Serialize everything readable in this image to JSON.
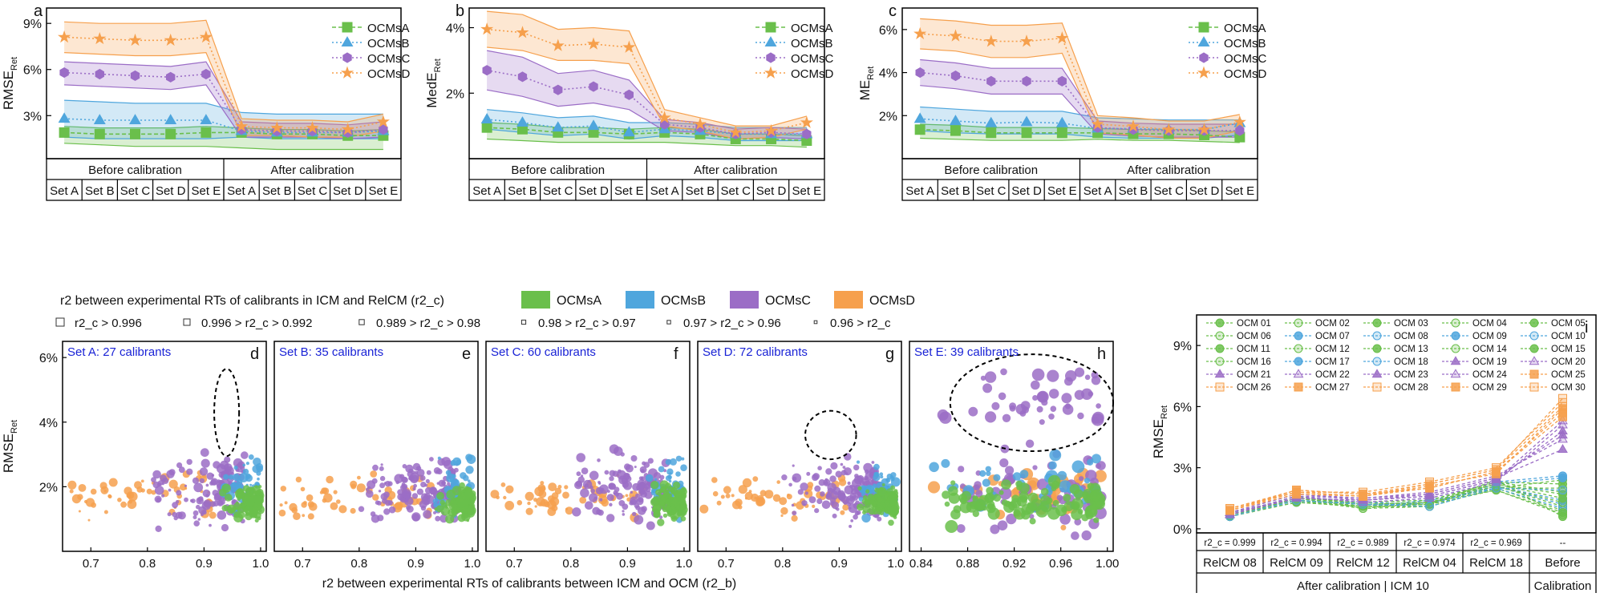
{
  "colors": {
    "OCMsA": "#6abf4b",
    "OCMsB": "#4fa6dd",
    "OCMsC": "#9b6dc6",
    "OCMsD": "#f6a04d"
  },
  "sets": [
    "Set A",
    "Set B",
    "Set C",
    "Set D",
    "Set E"
  ],
  "before_label": "Before calibration",
  "after_label": "After calibration",
  "chart_data": [
    {
      "id": "a",
      "type": "line",
      "panel_letter": "a",
      "ylabel_main": "RMSE",
      "ylabel_sub": "Ret",
      "ylim": [
        0.2,
        10.0
      ],
      "yticks": [
        3,
        6,
        9
      ],
      "yticklabels": [
        "3%",
        "6%",
        "9%"
      ],
      "series": [
        {
          "name": "OCMsA",
          "values": [
            1.9,
            1.8,
            1.8,
            1.8,
            1.9,
            1.9,
            1.8,
            1.8,
            1.7,
            1.7
          ],
          "upper": [
            2.3,
            2.2,
            2.2,
            2.2,
            2.3,
            2.2,
            2.1,
            2.1,
            2.0,
            2.1
          ],
          "lower": [
            1.2,
            1.1,
            1.0,
            1.0,
            1.0,
            0.9,
            0.8,
            0.8,
            0.8,
            0.8
          ]
        },
        {
          "name": "OCMsB",
          "values": [
            2.8,
            2.7,
            2.7,
            2.7,
            2.7,
            2.0,
            1.9,
            1.9,
            1.9,
            2.0
          ],
          "upper": [
            4.0,
            3.9,
            3.8,
            3.8,
            3.8,
            3.2,
            3.1,
            3.1,
            3.1,
            3.1
          ],
          "lower": [
            1.6,
            1.5,
            1.5,
            1.5,
            1.5,
            1.6,
            1.5,
            1.5,
            1.5,
            1.5
          ]
        },
        {
          "name": "OCMsC",
          "values": [
            5.8,
            5.7,
            5.6,
            5.5,
            5.7,
            2.1,
            2.0,
            2.0,
            1.9,
            2.1
          ],
          "upper": [
            6.5,
            6.4,
            6.3,
            6.2,
            6.5,
            2.6,
            2.5,
            2.5,
            2.4,
            2.6
          ],
          "lower": [
            5.0,
            4.9,
            4.8,
            4.7,
            5.0,
            1.6,
            1.6,
            1.6,
            1.5,
            1.6
          ]
        },
        {
          "name": "OCMsD",
          "values": [
            8.1,
            8.0,
            7.9,
            7.9,
            8.1,
            2.3,
            2.2,
            2.2,
            2.1,
            2.6
          ],
          "upper": [
            9.1,
            9.0,
            9.0,
            9.0,
            9.2,
            2.8,
            2.7,
            2.7,
            2.6,
            3.1
          ],
          "lower": [
            7.1,
            7.0,
            6.9,
            6.9,
            7.1,
            1.7,
            1.7,
            1.6,
            1.6,
            2.0
          ]
        }
      ]
    },
    {
      "id": "b",
      "type": "line",
      "panel_letter": "b",
      "ylabel_main": "MedE",
      "ylabel_sub": "Ret",
      "ylim": [
        0.0,
        4.6
      ],
      "yticks": [
        2,
        4
      ],
      "yticklabels": [
        "2%",
        "4%"
      ],
      "series": [
        {
          "name": "OCMsA",
          "values": [
            0.95,
            0.9,
            0.8,
            0.8,
            0.75,
            0.8,
            0.75,
            0.6,
            0.6,
            0.55
          ],
          "upper": [
            1.1,
            1.05,
            0.95,
            0.95,
            0.9,
            0.95,
            0.9,
            0.75,
            0.75,
            0.7
          ],
          "lower": [
            0.6,
            0.55,
            0.5,
            0.5,
            0.5,
            0.5,
            0.45,
            0.4,
            0.4,
            0.35
          ]
        },
        {
          "name": "OCMsB",
          "values": [
            1.2,
            1.1,
            0.95,
            1.0,
            0.8,
            0.9,
            0.85,
            0.75,
            0.75,
            0.75
          ],
          "upper": [
            1.5,
            1.4,
            1.25,
            1.3,
            1.1,
            1.1,
            1.05,
            0.95,
            0.95,
            0.95
          ],
          "lower": [
            0.9,
            0.8,
            0.7,
            0.75,
            0.6,
            0.7,
            0.65,
            0.55,
            0.55,
            0.55
          ]
        },
        {
          "name": "OCMsC",
          "values": [
            2.7,
            2.5,
            2.1,
            2.2,
            1.95,
            1.05,
            0.95,
            0.75,
            0.8,
            0.75
          ],
          "upper": [
            3.3,
            3.1,
            2.6,
            2.7,
            2.4,
            1.2,
            1.1,
            0.9,
            0.95,
            0.9
          ],
          "lower": [
            2.1,
            1.9,
            1.6,
            1.7,
            1.5,
            0.85,
            0.8,
            0.6,
            0.65,
            0.6
          ]
        },
        {
          "name": "OCMsD",
          "values": [
            3.95,
            3.85,
            3.45,
            3.5,
            3.4,
            1.25,
            1.05,
            0.8,
            0.85,
            1.1
          ],
          "upper": [
            4.5,
            4.4,
            3.95,
            4.0,
            3.9,
            1.5,
            1.25,
            1.0,
            1.0,
            1.3
          ],
          "lower": [
            3.4,
            3.3,
            3.0,
            3.0,
            2.9,
            1.0,
            0.85,
            0.6,
            0.65,
            0.9
          ]
        }
      ]
    },
    {
      "id": "c",
      "type": "line",
      "panel_letter": "c",
      "ylabel_main": "ME",
      "ylabel_sub": "Ret",
      "ylim": [
        0.0,
        7.0
      ],
      "yticks": [
        2,
        4,
        6
      ],
      "yticklabels": [
        "2%",
        "4%",
        "6%"
      ],
      "series": [
        {
          "name": "OCMsA",
          "values": [
            1.35,
            1.3,
            1.2,
            1.2,
            1.2,
            1.2,
            1.15,
            1.15,
            1.1,
            1.0
          ],
          "upper": [
            1.6,
            1.55,
            1.45,
            1.45,
            1.45,
            1.4,
            1.35,
            1.35,
            1.3,
            1.25
          ],
          "lower": [
            0.95,
            0.9,
            0.85,
            0.85,
            0.85,
            0.9,
            0.85,
            0.85,
            0.8,
            0.75
          ]
        },
        {
          "name": "OCMsB",
          "values": [
            1.85,
            1.75,
            1.65,
            1.7,
            1.65,
            1.4,
            1.4,
            1.35,
            1.35,
            1.65
          ],
          "upper": [
            2.4,
            2.3,
            2.2,
            2.2,
            2.2,
            1.9,
            1.85,
            1.8,
            1.8,
            1.8
          ],
          "lower": [
            1.3,
            1.2,
            1.15,
            1.15,
            1.15,
            1.0,
            0.95,
            0.95,
            0.95,
            1.1
          ]
        },
        {
          "name": "OCMsC",
          "values": [
            4.0,
            3.85,
            3.6,
            3.6,
            3.6,
            1.45,
            1.35,
            1.3,
            1.3,
            1.3
          ],
          "upper": [
            4.6,
            4.45,
            4.2,
            4.2,
            4.2,
            1.75,
            1.65,
            1.6,
            1.6,
            1.6
          ],
          "lower": [
            3.4,
            3.25,
            3.0,
            3.0,
            3.0,
            1.15,
            1.05,
            1.0,
            1.0,
            1.0
          ]
        },
        {
          "name": "OCMsD",
          "values": [
            5.8,
            5.7,
            5.45,
            5.45,
            5.6,
            1.6,
            1.5,
            1.35,
            1.35,
            1.7
          ],
          "upper": [
            6.5,
            6.4,
            6.2,
            6.2,
            6.3,
            2.0,
            1.9,
            1.75,
            1.75,
            2.05
          ],
          "lower": [
            5.1,
            5.0,
            4.7,
            4.7,
            4.9,
            1.2,
            1.1,
            0.95,
            0.95,
            1.3
          ]
        }
      ]
    },
    {
      "id": "scatter",
      "type": "scatter",
      "xlabel": "r2 between experimental RTs of calibrants between ICM and OCM (r2_b)",
      "ylabel_main": "RMSE",
      "ylabel_sub": "Ret",
      "ylim": [
        0.0,
        6.5
      ],
      "yticks": [
        2,
        4,
        6
      ],
      "yticklabels": [
        "2%",
        "4%",
        "6%"
      ],
      "panels": [
        {
          "letter": "d",
          "label": "Set A: 27 calibrants",
          "xlim": [
            0.65,
            1.01
          ],
          "xticks": [
            0.7,
            0.8,
            0.9,
            1.0
          ],
          "xticklabels": [
            "0.7",
            "0.8",
            "0.9",
            "1.0"
          ],
          "ellipse": {
            "cx": 0.94,
            "cy": 4.3,
            "rx": 0.022,
            "ry": 1.35
          }
        },
        {
          "letter": "e",
          "label": "Set B: 35 calibrants",
          "xlim": [
            0.65,
            1.01
          ],
          "xticks": [
            0.7,
            0.8,
            0.9,
            1.0
          ],
          "xticklabels": [
            "0.7",
            "0.8",
            "0.9",
            "1.0"
          ]
        },
        {
          "letter": "f",
          "label": "Set C: 60 calibrants",
          "xlim": [
            0.65,
            1.01
          ],
          "xticks": [
            0.7,
            0.8,
            0.9,
            1.0
          ],
          "xticklabels": [
            "0.7",
            "0.8",
            "0.9",
            "1.0"
          ]
        },
        {
          "letter": "g",
          "label": "Set D: 72 calibrants",
          "xlim": [
            0.65,
            1.01
          ],
          "xticks": [
            0.7,
            0.8,
            0.9,
            1.0
          ],
          "xticklabels": [
            "0.7",
            "0.8",
            "0.9",
            "1.0"
          ],
          "ellipse": {
            "cx": 0.885,
            "cy": 3.6,
            "rx": 0.045,
            "ry": 0.75
          }
        },
        {
          "letter": "h",
          "label": "Set E: 39 calibrants",
          "xlim": [
            0.83,
            1.005
          ],
          "xticks": [
            0.84,
            0.88,
            0.92,
            0.96,
            1.0
          ],
          "xticklabels": [
            "0.84",
            "0.88",
            "0.92",
            "0.96",
            "1.00"
          ],
          "ellipse": {
            "cx": 0.935,
            "cy": 4.6,
            "rx": 0.07,
            "ry": 1.5
          }
        }
      ]
    },
    {
      "id": "i",
      "type": "line",
      "panel_letter": "i",
      "ylabel_main": "RMSE",
      "ylabel_sub": "Ret",
      "ylim": [
        -0.2,
        10.5
      ],
      "yticks": [
        0,
        3,
        6,
        9
      ],
      "yticklabels": [
        "0%",
        "3%",
        "6%",
        "9%"
      ],
      "categories": [
        "RelCM 08",
        "RelCM 09",
        "RelCM 12",
        "RelCM 04",
        "RelCM 18",
        "Before"
      ],
      "r2c_labels": [
        "r2_c = 0.999",
        "r2_c = 0.994",
        "r2_c = 0.989",
        "r2_c = 0.974",
        "r2_c = 0.969",
        "--"
      ],
      "group_labels": [
        "After calibration  |  ICM 10",
        "Calibration"
      ],
      "series": [
        {
          "name": "OCM 01",
          "values": [
            0.7,
            1.5,
            1.2,
            1.3,
            2.0,
            2.4
          ]
        },
        {
          "name": "OCM 02",
          "values": [
            0.6,
            1.4,
            1.1,
            1.2,
            2.1,
            1.1
          ]
        },
        {
          "name": "OCM 03",
          "values": [
            0.8,
            1.5,
            1.3,
            1.4,
            2.2,
            1.7
          ]
        },
        {
          "name": "OCM 04",
          "values": [
            0.7,
            1.3,
            1.1,
            1.1,
            2.0,
            0.9
          ]
        },
        {
          "name": "OCM 05",
          "values": [
            0.6,
            1.4,
            1.2,
            1.2,
            2.3,
            2.2
          ]
        },
        {
          "name": "OCM 06",
          "values": [
            0.7,
            1.6,
            1.0,
            1.3,
            1.9,
            0.7
          ]
        },
        {
          "name": "OCM 07",
          "values": [
            0.8,
            1.4,
            1.2,
            1.2,
            2.1,
            1.4
          ]
        },
        {
          "name": "OCM 08",
          "values": [
            0.6,
            1.5,
            1.1,
            1.4,
            2.0,
            1.0
          ]
        },
        {
          "name": "OCM 09",
          "values": [
            0.7,
            1.3,
            1.3,
            1.2,
            2.2,
            2.5
          ]
        },
        {
          "name": "OCM 10",
          "values": [
            0.8,
            1.4,
            1.2,
            1.3,
            2.1,
            1.2
          ]
        },
        {
          "name": "OCM 11",
          "values": [
            0.6,
            1.5,
            1.1,
            1.2,
            2.4,
            0.6
          ]
        },
        {
          "name": "OCM 12",
          "values": [
            0.7,
            1.4,
            1.0,
            1.1,
            2.0,
            2.0
          ]
        },
        {
          "name": "OCM 13",
          "values": [
            0.7,
            1.6,
            1.2,
            1.3,
            2.2,
            1.5
          ]
        },
        {
          "name": "OCM 14",
          "values": [
            0.8,
            1.5,
            1.3,
            1.4,
            2.3,
            1.8
          ]
        },
        {
          "name": "OCM 15",
          "values": [
            0.6,
            1.3,
            1.1,
            1.2,
            1.9,
            0.8
          ]
        },
        {
          "name": "OCM 16",
          "values": [
            0.7,
            1.4,
            1.2,
            1.3,
            2.1,
            1.3
          ]
        },
        {
          "name": "OCM 17",
          "values": [
            0.7,
            1.6,
            1.3,
            1.5,
            2.3,
            2.6
          ]
        },
        {
          "name": "OCM 18",
          "values": [
            0.6,
            1.4,
            1.2,
            1.1,
            2.0,
            1.9
          ]
        },
        {
          "name": "OCM 19",
          "values": [
            0.8,
            1.7,
            1.4,
            1.7,
            2.5,
            3.9
          ]
        },
        {
          "name": "OCM 20",
          "values": [
            0.7,
            1.6,
            1.5,
            1.8,
            2.6,
            4.4
          ]
        },
        {
          "name": "OCM 21",
          "values": [
            0.8,
            1.5,
            1.4,
            1.6,
            2.4,
            4.8
          ]
        },
        {
          "name": "OCM 22",
          "values": [
            0.7,
            1.6,
            1.3,
            1.5,
            2.3,
            5.1
          ]
        },
        {
          "name": "OCM 23",
          "values": [
            0.8,
            1.7,
            1.5,
            1.7,
            2.5,
            4.6
          ]
        },
        {
          "name": "OCM 24",
          "values": [
            0.7,
            1.5,
            1.4,
            1.6,
            2.4,
            5.3
          ]
        },
        {
          "name": "OCM 25",
          "values": [
            0.9,
            1.8,
            1.6,
            2.0,
            2.8,
            5.5
          ]
        },
        {
          "name": "OCM 26",
          "values": [
            1.0,
            1.9,
            1.7,
            2.2,
            2.9,
            6.4
          ]
        },
        {
          "name": "OCM 27",
          "values": [
            0.9,
            1.7,
            1.6,
            2.1,
            2.7,
            5.9
          ]
        },
        {
          "name": "OCM 28",
          "values": [
            1.0,
            1.8,
            1.8,
            2.3,
            3.0,
            6.2
          ]
        },
        {
          "name": "OCM 29",
          "values": [
            0.9,
            1.9,
            1.7,
            2.0,
            2.8,
            5.7
          ]
        },
        {
          "name": "OCM 30",
          "values": [
            1.0,
            1.8,
            1.6,
            2.2,
            2.9,
            6.0
          ]
        }
      ]
    }
  ],
  "legend_top": {
    "title": "r2 between experimental RTs of calibrants in ICM and RelCM (r2_c)",
    "groups": [
      "OCMsA",
      "OCMsB",
      "OCMsC",
      "OCMsD"
    ],
    "size_labels": [
      "r2_c > 0.996",
      "0.996 > r2_c > 0.992",
      "0.989 > r2_c > 0.98",
      "0.98 > r2_c > 0.97",
      "0.97 > r2_c > 0.96",
      "0.96 > r2_c"
    ]
  }
}
